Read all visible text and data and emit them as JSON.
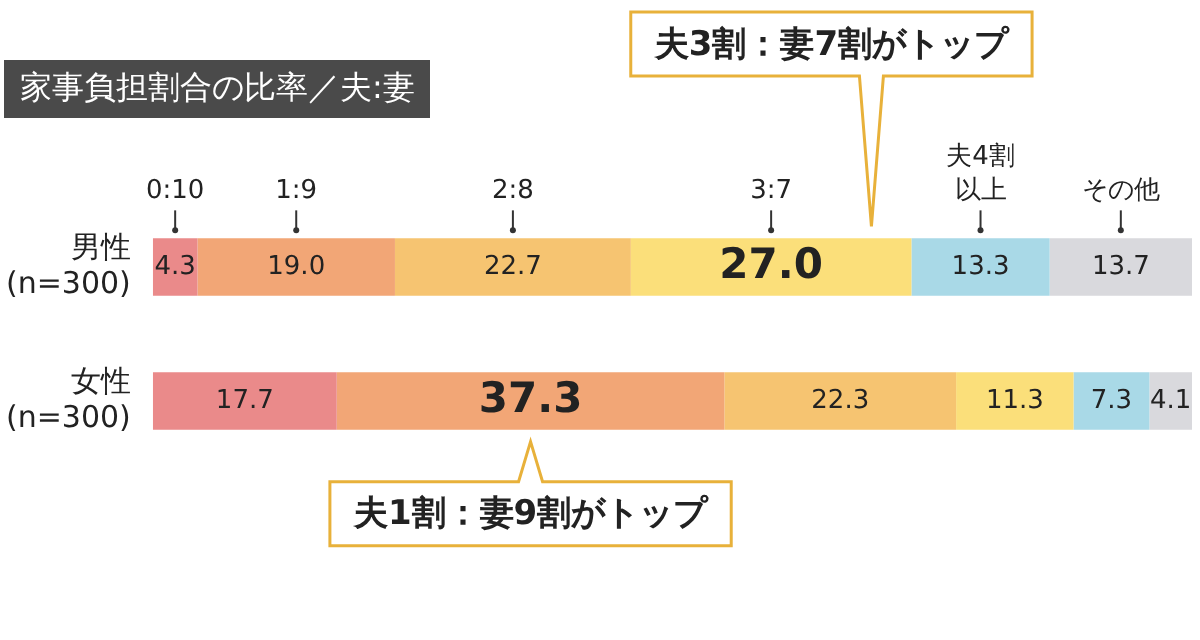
{
  "chart_data": {
    "type": "bar",
    "orientation": "horizontal",
    "stacked": true,
    "title": "家事負担割合の比率／夫:妻",
    "categories": [
      "男性(n=300)",
      "女性(n=300)"
    ],
    "series": [
      {
        "name": "0:10",
        "color": "#ea8a8a",
        "values": [
          4.3,
          17.7
        ],
        "value_labels": [
          "4.3",
          "17.7"
        ]
      },
      {
        "name": "1:9",
        "color": "#f2a676",
        "values": [
          19.0,
          37.3
        ],
        "value_labels": [
          "19.0",
          "37.3"
        ]
      },
      {
        "name": "2:8",
        "color": "#f6c471",
        "values": [
          22.7,
          22.3
        ],
        "value_labels": [
          "22.7",
          "22.3"
        ]
      },
      {
        "name": "3:7",
        "color": "#fbdf7a",
        "values": [
          27.0,
          11.3
        ],
        "value_labels": [
          "27.0",
          "11.3"
        ]
      },
      {
        "name": "夫4割以上",
        "color": "#a9d9e7",
        "values": [
          13.3,
          7.3
        ],
        "value_labels": [
          "13.3",
          "7.3"
        ]
      },
      {
        "name": "その他",
        "color": "#d9d9dd",
        "values": [
          13.7,
          4.1
        ],
        "value_labels": [
          "13.7",
          "4.1"
        ]
      }
    ],
    "tick_labels": "y",
    "grid": false,
    "legend": false,
    "annotations": [
      "夫3割：妻7割がトップ",
      "夫1割：妻9割がトップ"
    ]
  }
}
